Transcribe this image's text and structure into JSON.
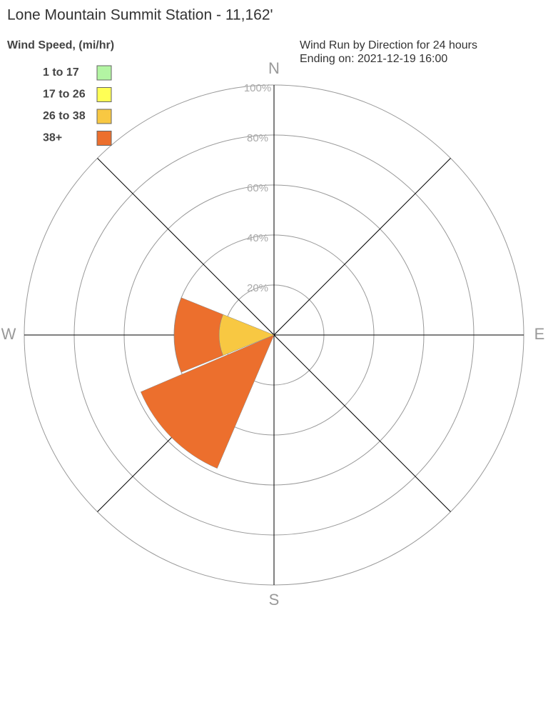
{
  "chart_data": {
    "type": "windrose",
    "title": "Lone Mountain Summit Station - 11,162'",
    "legend_title": "Wind Speed, (mi/hr)",
    "subtitle": [
      "Wind Run by Direction for 24 hours",
      "Ending on: 2021-12-19 16:00"
    ],
    "categories": [
      "N",
      null,
      "E",
      null,
      "S",
      null,
      "W",
      null
    ],
    "series": [
      {
        "name": "1 to 17",
        "color": "#b3f5a3",
        "values": [
          0,
          0,
          0,
          0,
          0,
          0,
          0,
          0
        ]
      },
      {
        "name": "17 to 26",
        "color": "#ffff55",
        "values": [
          0,
          0,
          0,
          0,
          0,
          0,
          0,
          0
        ]
      },
      {
        "name": "26 to 38",
        "color": "#f8c842",
        "values": [
          0,
          0,
          0,
          0,
          0,
          0,
          22,
          0
        ]
      },
      {
        "name": "38+",
        "color": "#ec6f2d",
        "values": [
          0,
          0,
          0,
          0,
          0,
          58,
          18,
          0
        ]
      }
    ],
    "ylim": [
      0,
      100
    ],
    "yticks": [
      {
        "value": 20,
        "label": "20%"
      },
      {
        "value": 40,
        "label": "40%"
      },
      {
        "value": 60,
        "label": "60%"
      },
      {
        "value": 80,
        "label": "80%"
      },
      {
        "value": 100,
        "label": "100%"
      }
    ],
    "grid": true
  }
}
